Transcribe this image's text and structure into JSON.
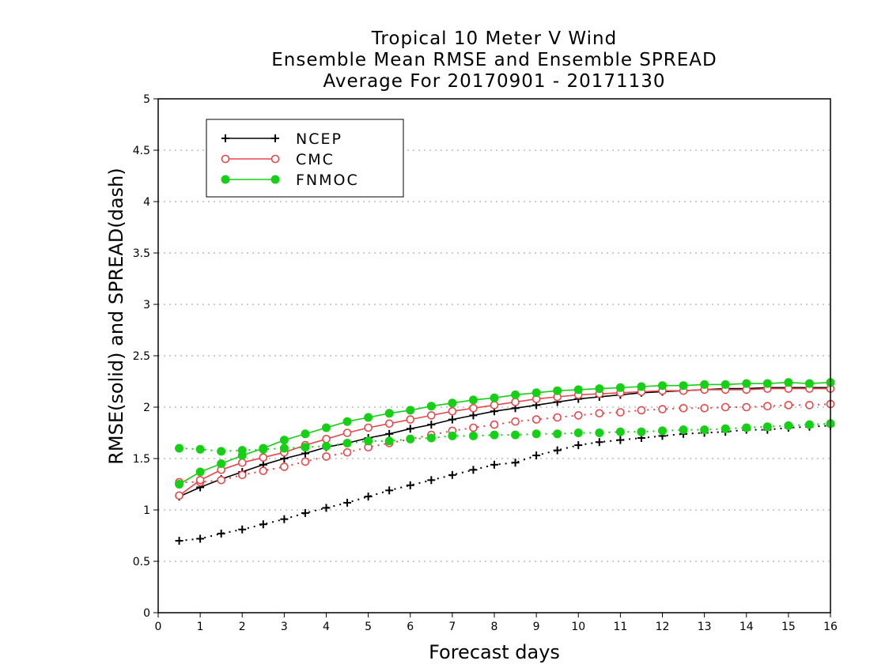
{
  "chart_data": {
    "type": "line",
    "title": [
      "Tropical 10 Meter V Wind",
      "Ensemble Mean RMSE and Ensemble SPREAD",
      "Average For 20170901 - 20171130"
    ],
    "xlabel": "Forecast days",
    "ylabel": "RMSE(solid) and SPREAD(dash)",
    "xlim": [
      0,
      16
    ],
    "ylim": [
      0,
      5
    ],
    "xticks": [
      "0",
      "1",
      "2",
      "3",
      "4",
      "5",
      "6",
      "7",
      "8",
      "9",
      "10",
      "11",
      "12",
      "13",
      "14",
      "15",
      "16"
    ],
    "yticks": [
      "0",
      "0.5",
      "1",
      "1.5",
      "2",
      "2.5",
      "3",
      "3.5",
      "4",
      "4.5",
      "5"
    ],
    "grid": "horizontal dotted",
    "legend_position": "top-left",
    "x": [
      0.5,
      1,
      1.5,
      2,
      2.5,
      3,
      3.5,
      4,
      4.5,
      5,
      5.5,
      6,
      6.5,
      7,
      7.5,
      8,
      8.5,
      9,
      9.5,
      10,
      10.5,
      11,
      11.5,
      12,
      12.5,
      13,
      13.5,
      14,
      14.5,
      15,
      15.5,
      16
    ],
    "series": [
      {
        "name": "NCEP",
        "color": "#000000",
        "marker": "plus",
        "rmse": [
          1.13,
          1.22,
          1.3,
          1.37,
          1.44,
          1.5,
          1.55,
          1.61,
          1.65,
          1.7,
          1.74,
          1.79,
          1.83,
          1.88,
          1.92,
          1.96,
          1.99,
          2.02,
          2.05,
          2.08,
          2.1,
          2.12,
          2.14,
          2.15,
          2.16,
          2.17,
          2.18,
          2.18,
          2.19,
          2.19,
          2.19,
          2.19
        ],
        "spread": [
          0.7,
          0.72,
          0.77,
          0.81,
          0.86,
          0.91,
          0.97,
          1.02,
          1.07,
          1.13,
          1.19,
          1.24,
          1.29,
          1.34,
          1.39,
          1.44,
          1.46,
          1.53,
          1.58,
          1.63,
          1.66,
          1.68,
          1.7,
          1.72,
          1.74,
          1.75,
          1.76,
          1.78,
          1.78,
          1.8,
          1.81,
          1.82
        ]
      },
      {
        "name": "CMC",
        "color": "#e8474b",
        "marker": "open-circle",
        "rmse": [
          1.14,
          1.29,
          1.39,
          1.46,
          1.51,
          1.56,
          1.63,
          1.69,
          1.75,
          1.8,
          1.84,
          1.88,
          1.92,
          1.96,
          1.99,
          2.02,
          2.05,
          2.08,
          2.1,
          2.12,
          2.13,
          2.14,
          2.15,
          2.16,
          2.16,
          2.17,
          2.17,
          2.17,
          2.18,
          2.18,
          2.18,
          2.18
        ],
        "spread": [
          1.27,
          1.27,
          1.29,
          1.34,
          1.38,
          1.42,
          1.47,
          1.52,
          1.56,
          1.61,
          1.65,
          1.69,
          1.73,
          1.77,
          1.8,
          1.83,
          1.86,
          1.88,
          1.9,
          1.92,
          1.94,
          1.95,
          1.97,
          1.98,
          1.99,
          1.99,
          2.0,
          2.0,
          2.01,
          2.02,
          2.02,
          2.03
        ]
      },
      {
        "name": "FNMOC",
        "color": "#16d016",
        "marker": "filled-circle",
        "rmse": [
          1.25,
          1.37,
          1.45,
          1.53,
          1.6,
          1.68,
          1.74,
          1.8,
          1.86,
          1.9,
          1.94,
          1.97,
          2.01,
          2.04,
          2.07,
          2.09,
          2.12,
          2.14,
          2.16,
          2.17,
          2.18,
          2.19,
          2.2,
          2.21,
          2.21,
          2.22,
          2.22,
          2.23,
          2.23,
          2.24,
          2.23,
          2.24
        ],
        "spread": [
          1.6,
          1.59,
          1.57,
          1.58,
          1.59,
          1.6,
          1.61,
          1.62,
          1.65,
          1.67,
          1.67,
          1.69,
          1.7,
          1.72,
          1.72,
          1.73,
          1.73,
          1.74,
          1.74,
          1.75,
          1.75,
          1.76,
          1.76,
          1.77,
          1.78,
          1.78,
          1.79,
          1.8,
          1.81,
          1.82,
          1.83,
          1.84
        ]
      }
    ]
  }
}
